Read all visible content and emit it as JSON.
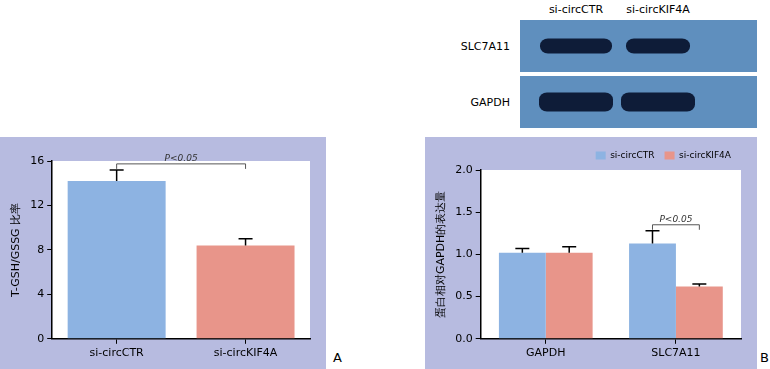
{
  "chart_data": [
    {
      "type": "bar",
      "panel_label": "A",
      "categories": [
        "si-circCTR",
        "si-circKIF4A"
      ],
      "values": [
        14.2,
        8.4
      ],
      "errors": [
        1.0,
        0.6
      ],
      "colors": [
        "#8db3e2",
        "#e8958a"
      ],
      "y_label": "T-GSH/GSSG 比率",
      "ylim": [
        0,
        16
      ],
      "yticks": [
        0,
        4,
        8,
        12,
        16
      ],
      "grid": false,
      "annotations": [
        {
          "text": "P<0.05",
          "between": [
            "si-circCTR",
            "si-circKIF4A"
          ]
        }
      ]
    },
    {
      "type": "bar",
      "panel_label": "B",
      "categories": [
        "GAPDH",
        "SLC7A11"
      ],
      "series": [
        {
          "name": "si-circCTR",
          "color": "#8db3e2",
          "values": [
            1.02,
            1.13
          ],
          "errors": [
            0.05,
            0.15
          ]
        },
        {
          "name": "si-circKIF4A",
          "color": "#e8958a",
          "values": [
            1.02,
            0.62
          ],
          "errors": [
            0.07,
            0.03
          ]
        }
      ],
      "y_label": "蛋白相对GAPDH的表达量",
      "ylim": [
        0,
        2
      ],
      "yticks": [
        {
          "value": 0,
          "label": "0.0"
        },
        0.5,
        {
          "value": 1,
          "label": "1.0"
        },
        1.5,
        {
          "value": 2,
          "label": "2.0"
        }
      ],
      "grid": false,
      "legend": "upper right",
      "annotations": [
        {
          "text": "P<0.05",
          "category": "SLC7A11"
        }
      ]
    }
  ],
  "western_blot": {
    "lanes": [
      "si-circCTR",
      "si-circKIF4A"
    ],
    "rows": [
      "SLC7A11",
      "GAPDH"
    ]
  }
}
